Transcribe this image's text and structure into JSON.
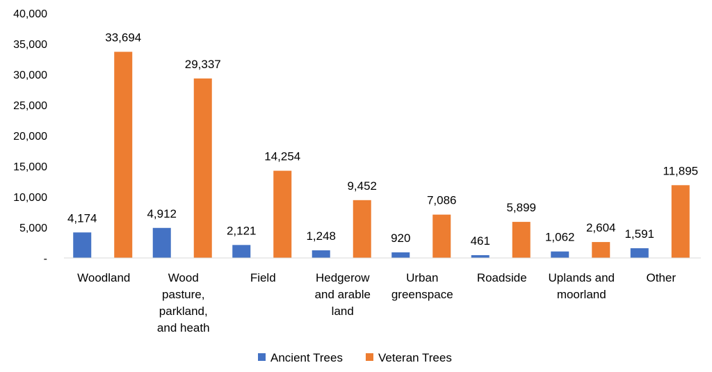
{
  "chart_data": {
    "type": "bar",
    "categories": [
      [
        "Woodland"
      ],
      [
        "Wood",
        "pasture,",
        "parkland,",
        "and heath"
      ],
      [
        "Field"
      ],
      [
        "Hedgerow",
        "and arable",
        "land"
      ],
      [
        "Urban",
        "greenspace"
      ],
      [
        "Roadside"
      ],
      [
        "Uplands and",
        "moorland"
      ],
      [
        "Other"
      ]
    ],
    "series": [
      {
        "name": "Ancient Trees",
        "color": "#4472C4",
        "values": [
          4174,
          4912,
          2121,
          1248,
          920,
          461,
          1062,
          1591
        ],
        "labels": [
          "4,174",
          "4,912",
          "2,121",
          "1,248",
          "920",
          "461",
          "1,062",
          "1,591"
        ]
      },
      {
        "name": "Veteran Trees",
        "color": "#ED7D31",
        "values": [
          33694,
          29337,
          14254,
          9452,
          7086,
          5899,
          2604,
          11895
        ],
        "labels": [
          "33,694",
          "29,337",
          "14,254",
          "9,452",
          "7,086",
          "5,899",
          "2,604",
          "11,895"
        ]
      }
    ],
    "ylim": [
      0,
      40000
    ],
    "yticks": [
      0,
      5000,
      10000,
      15000,
      20000,
      25000,
      30000,
      35000,
      40000
    ],
    "ytick_labels": [
      "-",
      "5,000",
      "10,000",
      "15,000",
      "20,000",
      "25,000",
      "30,000",
      "35,000",
      "40,000"
    ],
    "grid": false,
    "legend_position": "bottom"
  }
}
